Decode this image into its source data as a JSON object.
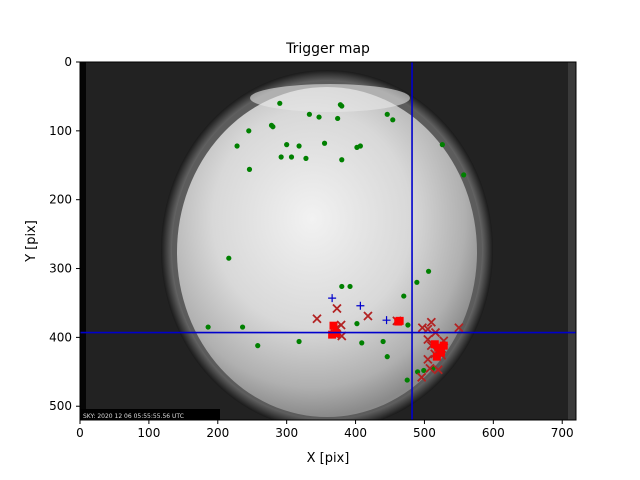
{
  "chart_data": {
    "type": "scatter",
    "title": "Trigger map",
    "xlabel": "X [pix]",
    "ylabel": "Y [pix]",
    "xlim": [
      0,
      720
    ],
    "ylim": [
      520,
      0
    ],
    "y_inverted": true,
    "xticks": [
      0,
      100,
      200,
      300,
      400,
      500,
      600,
      700
    ],
    "yticks": [
      0,
      100,
      200,
      300,
      400,
      500
    ],
    "grid": false,
    "legend": "none",
    "background_image": "grayscale all-sky camera frame (fisheye circle)",
    "image_timestamp_text": "SKY: 2020 12 06 05:55:55.56 UTC",
    "crosshair": {
      "x": 482,
      "y": 393,
      "color": "#0000cc"
    },
    "series": [
      {
        "marker": "dot",
        "color": "#008000",
        "points": [
          [
            290,
            60
          ],
          [
            378,
            62
          ],
          [
            380,
            64
          ],
          [
            278,
            92
          ],
          [
            280,
            94
          ],
          [
            245,
            100
          ],
          [
            333,
            76
          ],
          [
            347,
            80
          ],
          [
            374,
            82
          ],
          [
            446,
            76
          ],
          [
            454,
            84
          ],
          [
            300,
            120
          ],
          [
            318,
            122
          ],
          [
            228,
            122
          ],
          [
            292,
            138
          ],
          [
            307,
            138
          ],
          [
            328,
            140
          ],
          [
            355,
            118
          ],
          [
            402,
            124
          ],
          [
            407,
            122
          ],
          [
            380,
            142
          ],
          [
            526,
            120
          ],
          [
            246,
            156
          ],
          [
            557,
            164
          ],
          [
            216,
            285
          ],
          [
            506,
            304
          ],
          [
            380,
            326
          ],
          [
            392,
            326
          ],
          [
            489,
            320
          ],
          [
            470,
            340
          ],
          [
            186,
            385
          ],
          [
            236,
            385
          ],
          [
            402,
            380
          ],
          [
            476,
            382
          ],
          [
            258,
            412
          ],
          [
            318,
            406
          ],
          [
            409,
            408
          ],
          [
            440,
            406
          ],
          [
            446,
            428
          ],
          [
            499,
            448
          ],
          [
            512,
            445
          ],
          [
            475,
            462
          ],
          [
            490,
            450
          ]
        ]
      },
      {
        "marker": "plus",
        "color": "#0000cc",
        "points": [
          [
            366,
            343
          ],
          [
            407,
            354
          ],
          [
            445,
            375
          ]
        ]
      },
      {
        "marker": "x",
        "color": "#b22222",
        "points": [
          [
            344,
            373
          ],
          [
            373,
            358
          ],
          [
            373,
            386
          ],
          [
            379,
            382
          ],
          [
            370,
            395
          ],
          [
            380,
            398
          ],
          [
            418,
            369
          ],
          [
            460,
            376
          ],
          [
            497,
            386
          ],
          [
            505,
            388
          ],
          [
            510,
            378
          ],
          [
            516,
            393
          ],
          [
            505,
            403
          ],
          [
            510,
            412
          ],
          [
            528,
            405
          ],
          [
            515,
            424
          ],
          [
            505,
            432
          ],
          [
            525,
            426
          ],
          [
            508,
            445
          ],
          [
            520,
            447
          ],
          [
            496,
            458
          ],
          [
            550,
            386
          ]
        ]
      },
      {
        "marker": "square",
        "color": "#ff0000",
        "points": [
          [
            368,
            383
          ],
          [
            366,
            396
          ],
          [
            372,
            394
          ],
          [
            462,
            377
          ],
          [
            464,
            376
          ],
          [
            515,
            410
          ],
          [
            520,
            415
          ],
          [
            528,
            412
          ],
          [
            524,
            422
          ],
          [
            518,
            428
          ]
        ]
      }
    ]
  }
}
